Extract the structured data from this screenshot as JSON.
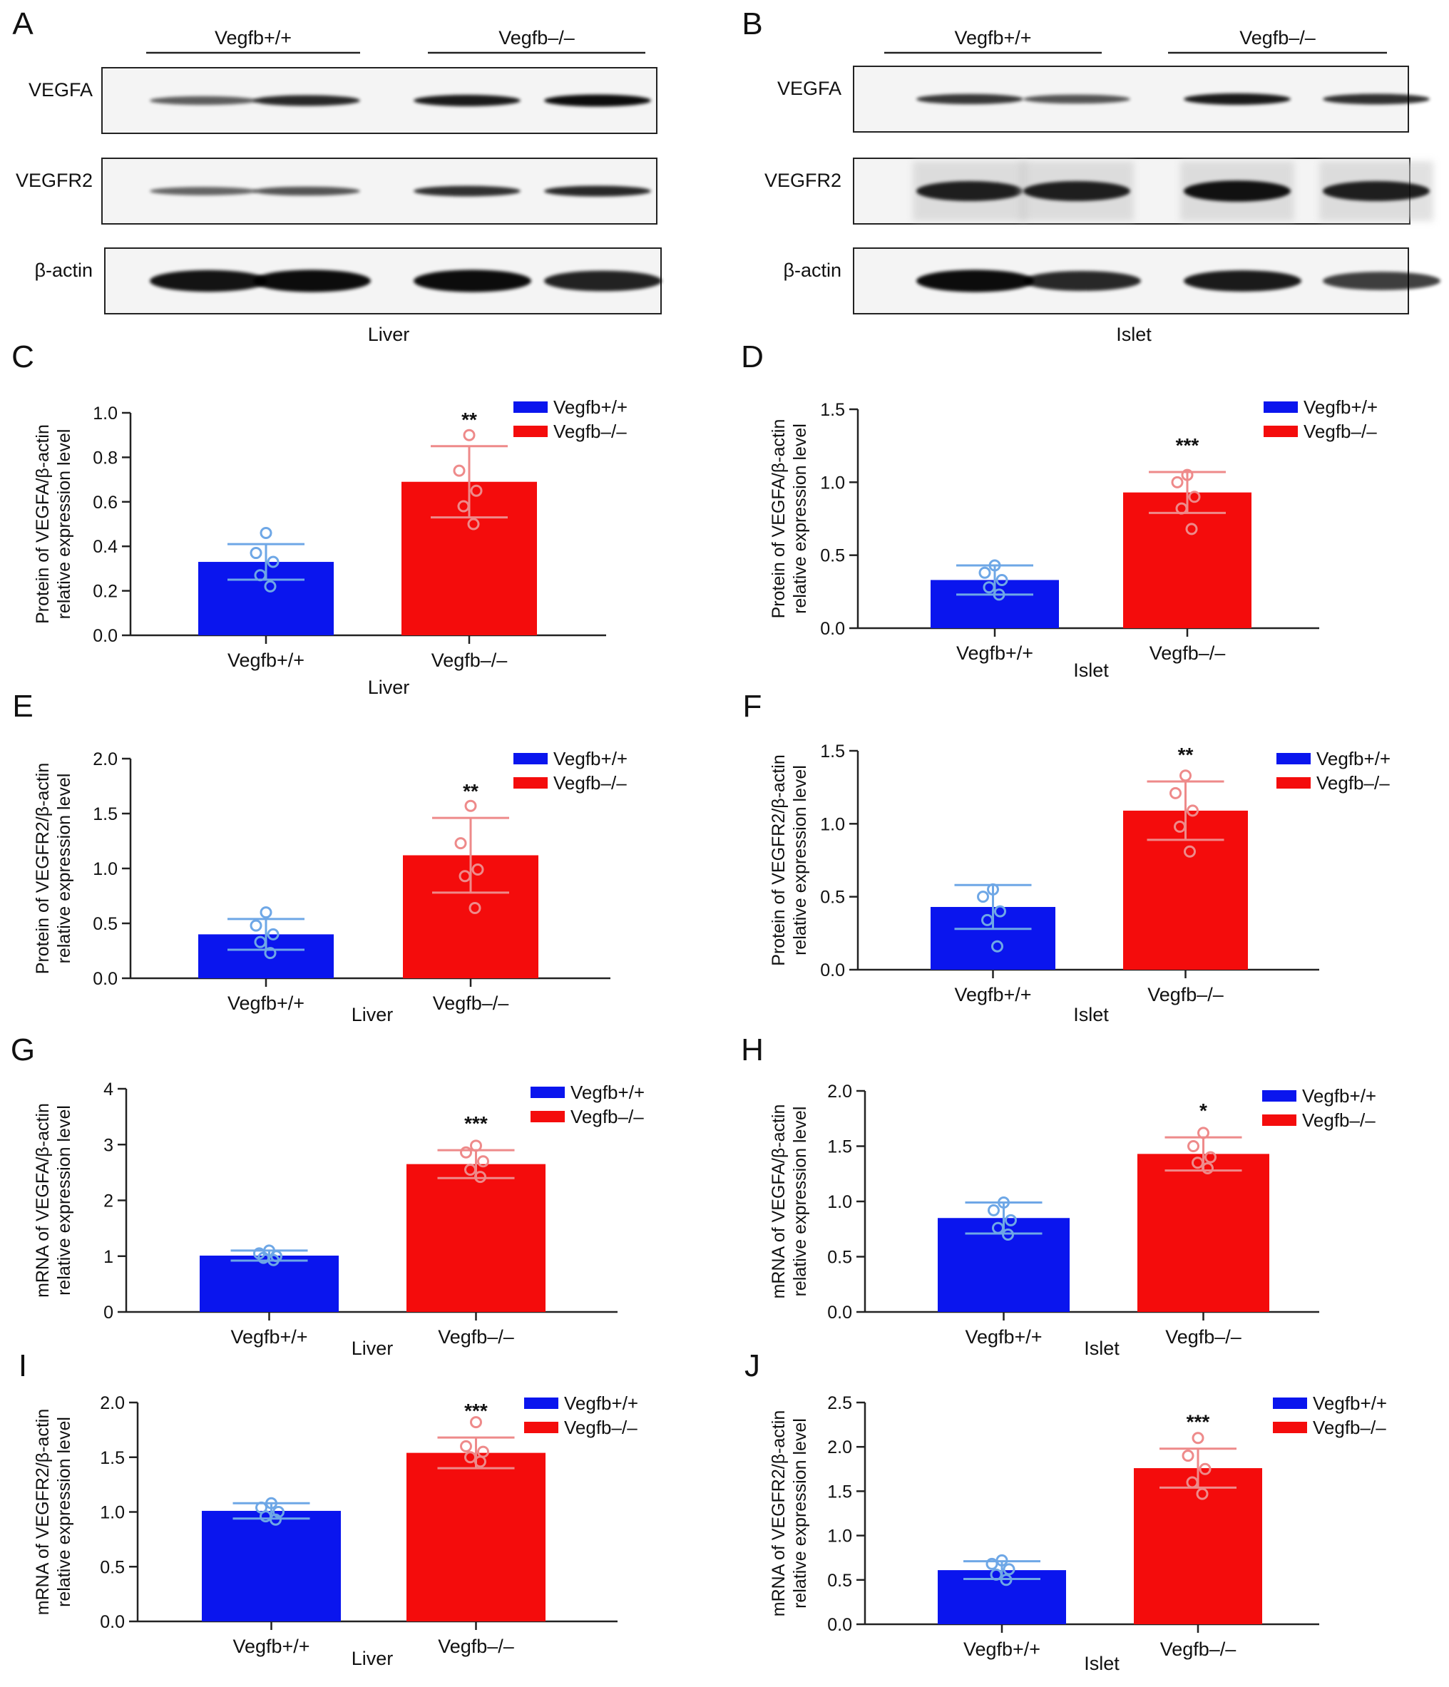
{
  "groups": [
    "Vegfb+/+",
    "Vegfb–/–"
  ],
  "colors": {
    "Vegfb+/+": "#0a15ee",
    "Vegfb–/–": "#f40c0c",
    "points_wt": "#6ea7e6",
    "points_ko": "#ee8a8a"
  },
  "blots": [
    {
      "label": "A",
      "tissue": "Liver",
      "rows": [
        "VEGFA",
        "VEGFR2",
        "β-actin"
      ],
      "intensity": [
        [
          0.45,
          0.8,
          0.9,
          1.0
        ],
        [
          0.4,
          0.5,
          0.75,
          0.8
        ],
        [
          0.95,
          1.0,
          1.0,
          0.85
        ]
      ]
    },
    {
      "label": "B",
      "tissue": "Islet",
      "rows": [
        "VEGFA",
        "VEGFR2",
        "β-actin"
      ],
      "intensity": [
        [
          0.7,
          0.5,
          0.9,
          0.75
        ],
        [
          0.85,
          0.85,
          0.95,
          0.85
        ],
        [
          1.0,
          0.8,
          0.9,
          0.65
        ]
      ]
    }
  ],
  "chart_data": [
    {
      "label": "C",
      "type": "bar",
      "tissue": "Liver",
      "ylabel_1": "Protein of VEGFA/β-actin",
      "ylabel_2": "relative expression level",
      "categories": [
        "Vegfb+/+",
        "Vegfb–/–"
      ],
      "ylim": [
        0,
        1.0
      ],
      "yticks": [
        0.0,
        0.2,
        0.4,
        0.6,
        0.8,
        1.0
      ],
      "tick_decimals": 1,
      "values": [
        0.33,
        0.69
      ],
      "errors": [
        0.08,
        0.16
      ],
      "significance": "**",
      "points": [
        [
          0.46,
          0.37,
          0.33,
          0.27,
          0.22
        ],
        [
          0.9,
          0.74,
          0.65,
          0.58,
          0.5
        ]
      ]
    },
    {
      "label": "D",
      "type": "bar",
      "tissue": "Islet",
      "ylabel_1": "Protein of VEGFA/β-actin",
      "ylabel_2": "relative expression level",
      "categories": [
        "Vegfb+/+",
        "Vegfb–/–"
      ],
      "ylim": [
        0,
        1.5
      ],
      "yticks": [
        0.0,
        0.5,
        1.0,
        1.5
      ],
      "tick_decimals": 1,
      "values": [
        0.33,
        0.93
      ],
      "errors": [
        0.1,
        0.14
      ],
      "significance": "***",
      "points": [
        [
          0.43,
          0.38,
          0.33,
          0.28,
          0.23
        ],
        [
          1.05,
          1.0,
          0.9,
          0.82,
          0.68
        ]
      ]
    },
    {
      "label": "E",
      "type": "bar",
      "tissue": "Liver",
      "ylabel_1": "Protein of VEGFR2/β-actin",
      "ylabel_2": "relative expression level",
      "categories": [
        "Vegfb+/+",
        "Vegfb–/–"
      ],
      "ylim": [
        0,
        2.0
      ],
      "yticks": [
        0.0,
        0.5,
        1.0,
        1.5,
        2.0
      ],
      "tick_decimals": 1,
      "values": [
        0.4,
        1.12
      ],
      "errors": [
        0.14,
        0.34
      ],
      "significance": "**",
      "points": [
        [
          0.6,
          0.48,
          0.4,
          0.33,
          0.23
        ],
        [
          1.57,
          1.23,
          0.99,
          0.93,
          0.64
        ]
      ]
    },
    {
      "label": "F",
      "type": "bar",
      "tissue": "Islet",
      "ylabel_1": "Protein of VEGFR2/β-actin",
      "ylabel_2": "relative expression level",
      "categories": [
        "Vegfb+/+",
        "Vegfb–/–"
      ],
      "ylim": [
        0,
        1.5
      ],
      "yticks": [
        0.0,
        0.5,
        1.0,
        1.5
      ],
      "tick_decimals": 1,
      "values": [
        0.43,
        1.09
      ],
      "errors": [
        0.15,
        0.2
      ],
      "significance": "**",
      "points": [
        [
          0.55,
          0.5,
          0.4,
          0.34,
          0.16
        ],
        [
          1.33,
          1.21,
          1.09,
          0.98,
          0.81
        ]
      ]
    },
    {
      "label": "G",
      "type": "bar",
      "tissue": "Liver",
      "ylabel_1": "mRNA of VEGFA/β-actin",
      "ylabel_2": "relative expression level",
      "categories": [
        "Vegfb+/+",
        "Vegfb–/–"
      ],
      "ylim": [
        0,
        4
      ],
      "yticks": [
        0,
        1,
        2,
        3,
        4
      ],
      "tick_decimals": 0,
      "values": [
        1.01,
        2.65
      ],
      "errors": [
        0.09,
        0.25
      ],
      "significance": "***",
      "points": [
        [
          1.1,
          1.05,
          1.0,
          0.97,
          0.93
        ],
        [
          2.98,
          2.86,
          2.7,
          2.55,
          2.42
        ]
      ]
    },
    {
      "label": "H",
      "type": "bar",
      "tissue": "Islet",
      "ylabel_1": "mRNA of VEGFA/β-actin",
      "ylabel_2": "relative expression level",
      "categories": [
        "Vegfb+/+",
        "Vegfb–/–"
      ],
      "ylim": [
        0,
        2.0
      ],
      "yticks": [
        0.0,
        0.5,
        1.0,
        1.5,
        2.0
      ],
      "tick_decimals": 1,
      "values": [
        0.85,
        1.43
      ],
      "errors": [
        0.14,
        0.15
      ],
      "significance": "*",
      "points": [
        [
          0.99,
          0.92,
          0.83,
          0.76,
          0.7
        ],
        [
          1.62,
          1.5,
          1.4,
          1.35,
          1.3
        ]
      ]
    },
    {
      "label": "I",
      "type": "bar",
      "tissue": "Liver",
      "ylabel_1": "mRNA of VEGFR2/β-actin",
      "ylabel_2": "relative expression level",
      "categories": [
        "Vegfb+/+",
        "Vegfb–/–"
      ],
      "ylim": [
        0,
        2.0
      ],
      "yticks": [
        0.0,
        0.5,
        1.0,
        1.5,
        2.0
      ],
      "tick_decimals": 1,
      "values": [
        1.01,
        1.54
      ],
      "errors": [
        0.07,
        0.14
      ],
      "significance": "***",
      "points": [
        [
          1.08,
          1.04,
          1.0,
          0.96,
          0.93
        ],
        [
          1.82,
          1.6,
          1.55,
          1.5,
          1.46
        ]
      ]
    },
    {
      "label": "J",
      "type": "bar",
      "tissue": "Islet",
      "ylabel_1": "mRNA of VEGFR2/β-actin",
      "ylabel_2": "relative expression level",
      "categories": [
        "Vegfb+/+",
        "Vegfb–/–"
      ],
      "ylim": [
        0,
        2.5
      ],
      "yticks": [
        0.0,
        0.5,
        1.0,
        1.5,
        2.0,
        2.5
      ],
      "tick_decimals": 1,
      "values": [
        0.61,
        1.76
      ],
      "errors": [
        0.1,
        0.22
      ],
      "significance": "***",
      "points": [
        [
          0.72,
          0.68,
          0.62,
          0.56,
          0.5
        ],
        [
          2.1,
          1.9,
          1.75,
          1.6,
          1.47
        ]
      ]
    }
  ]
}
